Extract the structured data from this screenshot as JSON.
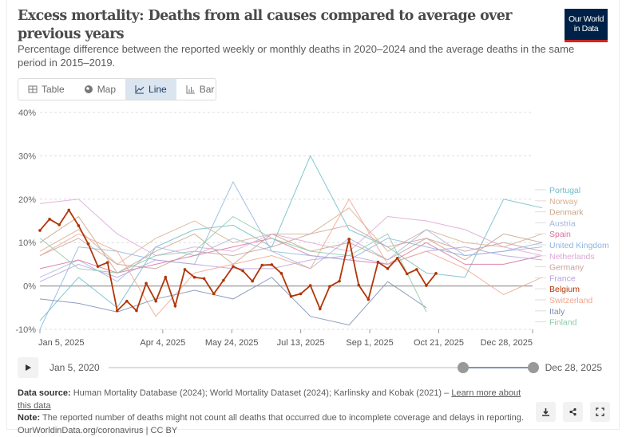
{
  "header": {
    "title": "Excess mortality: Deaths from all causes compared to average over previous years",
    "subtitle": "Percentage difference between the reported weekly or monthly deaths in 2020–2024 and the average deaths in the same period in 2015–2019.",
    "logo": "Our World in Data"
  },
  "tabs": [
    {
      "label": "Table",
      "icon": "table-icon"
    },
    {
      "label": "Map",
      "icon": "globe-icon"
    },
    {
      "label": "Line",
      "icon": "line-chart-icon",
      "active": true
    },
    {
      "label": "Bar",
      "icon": "bar-chart-icon"
    }
  ],
  "timeline": {
    "start": "Jan 5, 2020",
    "end": "Dec 28, 2025",
    "play_icon": "play-icon"
  },
  "footer": {
    "source_label": "Data source:",
    "source": "Human Mortality Database (2024); World Mortality Dataset (2024); Karlinsky and Kobak (2021) – ",
    "learn_more": "Learn more about this data",
    "note_label": "Note:",
    "note": "The reported number of deaths might not count all deaths that occurred due to incomplete coverage and delays in reporting.",
    "url": "OurWorldinData.org/coronavirus | CC BY"
  },
  "actions": [
    {
      "name": "download",
      "icon": "download-icon"
    },
    {
      "name": "share",
      "icon": "share-icon"
    },
    {
      "name": "fullscreen",
      "icon": "fullscreen-icon"
    }
  ],
  "chart_data": {
    "type": "line",
    "x_start": "2025-01-05",
    "x_step_days": 7,
    "x_ticks": [
      "Jan 5, 2025",
      "Apr 4, 2025",
      "May 24, 2025",
      "Jul 13, 2025",
      "Sep 1, 2025",
      "Oct 21, 2025",
      "Dec 28, 2025"
    ],
    "x_tick_dates": [
      "2025-01-05",
      "2025-04-04",
      "2025-05-24",
      "2025-07-13",
      "2025-09-01",
      "2025-10-21",
      "2025-12-28"
    ],
    "y_ticks": [
      -10,
      0,
      10,
      20,
      30,
      40
    ],
    "y_tick_labels": [
      "-10%",
      "0%",
      "10%",
      "20%",
      "30%",
      "40%"
    ],
    "ylim": [
      -10,
      40
    ],
    "grid": true,
    "legend": "right",
    "highlight": "Belgium",
    "series": [
      {
        "name": "Portugal",
        "color": "#6dbcc9",
        "step_weeks": 4,
        "values": [
          -8,
          2,
          -5,
          9,
          13,
          14,
          9,
          30,
          13,
          9,
          3,
          2,
          20,
          18
        ]
      },
      {
        "name": "Norway",
        "color": "#d6b08f",
        "step_weeks": 4,
        "values": [
          8,
          13,
          5,
          11,
          15,
          10,
          12,
          12,
          18,
          8,
          13,
          10,
          9,
          12
        ]
      },
      {
        "name": "Denmark",
        "color": "#c8a587",
        "step_weeks": 4,
        "values": [
          10,
          16,
          3,
          8,
          12,
          5,
          12,
          8,
          10,
          6,
          11,
          6,
          12,
          10
        ]
      },
      {
        "name": "Austria",
        "color": "#a5b5d9",
        "step_weeks": 4,
        "values": [
          2,
          6,
          1,
          9,
          7,
          11,
          8,
          4,
          11,
          6,
          13,
          7,
          8,
          9
        ]
      },
      {
        "name": "Spain",
        "color": "#d9739c",
        "step_weeks": 4,
        "values": [
          4,
          6,
          3,
          5,
          7,
          9,
          11,
          7,
          6,
          5,
          10,
          5,
          5,
          7
        ]
      },
      {
        "name": "United Kingdom",
        "color": "#8eb5e1",
        "step_weeks": 4,
        "values": [
          -10,
          9,
          8,
          6,
          5,
          24,
          8,
          7,
          6,
          11,
          9,
          7,
          8,
          10
        ]
      },
      {
        "name": "Netherlands",
        "color": "#dea6d6",
        "step_weeks": 4,
        "values": [
          19,
          20,
          12,
          7,
          9,
          8,
          12,
          10,
          8,
          16,
          15,
          13,
          9,
          7
        ]
      },
      {
        "name": "Germany",
        "color": "#c8a0a0",
        "step_weeks": 4,
        "values": [
          7,
          11,
          5,
          4,
          8,
          7,
          9,
          12,
          14,
          9,
          11,
          8,
          10,
          8
        ]
      },
      {
        "name": "France",
        "color": "#b5a2de",
        "step_weeks": 4,
        "values": [
          1,
          5,
          2,
          6,
          5,
          4,
          4,
          6,
          7,
          5,
          8,
          9,
          7,
          6
        ]
      },
      {
        "name": "Switzerland",
        "color": "#f0a68e",
        "step_weeks": 4,
        "values": [
          7,
          12,
          8,
          -7,
          3,
          5,
          7,
          4,
          20,
          5,
          8,
          4,
          -2,
          2
        ]
      },
      {
        "name": "Italy",
        "color": "#7b8cb4",
        "step_weeks": 4,
        "values": [
          -3,
          -4,
          -6,
          -3,
          -1,
          -3,
          2,
          -7,
          -9,
          1,
          -5
        ]
      },
      {
        "name": "Finland",
        "color": "#8ccaa8",
        "step_weeks": 4,
        "values": [
          11,
          4,
          3,
          7,
          8,
          16,
          11,
          8,
          7,
          12,
          -6
        ]
      },
      {
        "name": "Belgium",
        "color": "#b13507",
        "step_weeks": 1,
        "values": [
          12.8,
          15.4,
          14.1,
          17.5,
          13.9,
          9.7,
          4.5,
          5.4,
          -5.7,
          -3.5,
          -5.7,
          0.6,
          -3.5,
          2.0,
          -4.6,
          3.8,
          2.0,
          1.7,
          -1.8,
          1.3,
          4.5,
          3.5,
          1.1,
          4.8,
          4.9,
          2.9,
          -2.4,
          -1.8,
          0.1,
          -5.3,
          -0.1,
          1.1,
          10.8,
          0.2,
          -3.1,
          5.5,
          4.0,
          6.4,
          2.8,
          3.8,
          0.1,
          2.9
        ]
      }
    ]
  }
}
